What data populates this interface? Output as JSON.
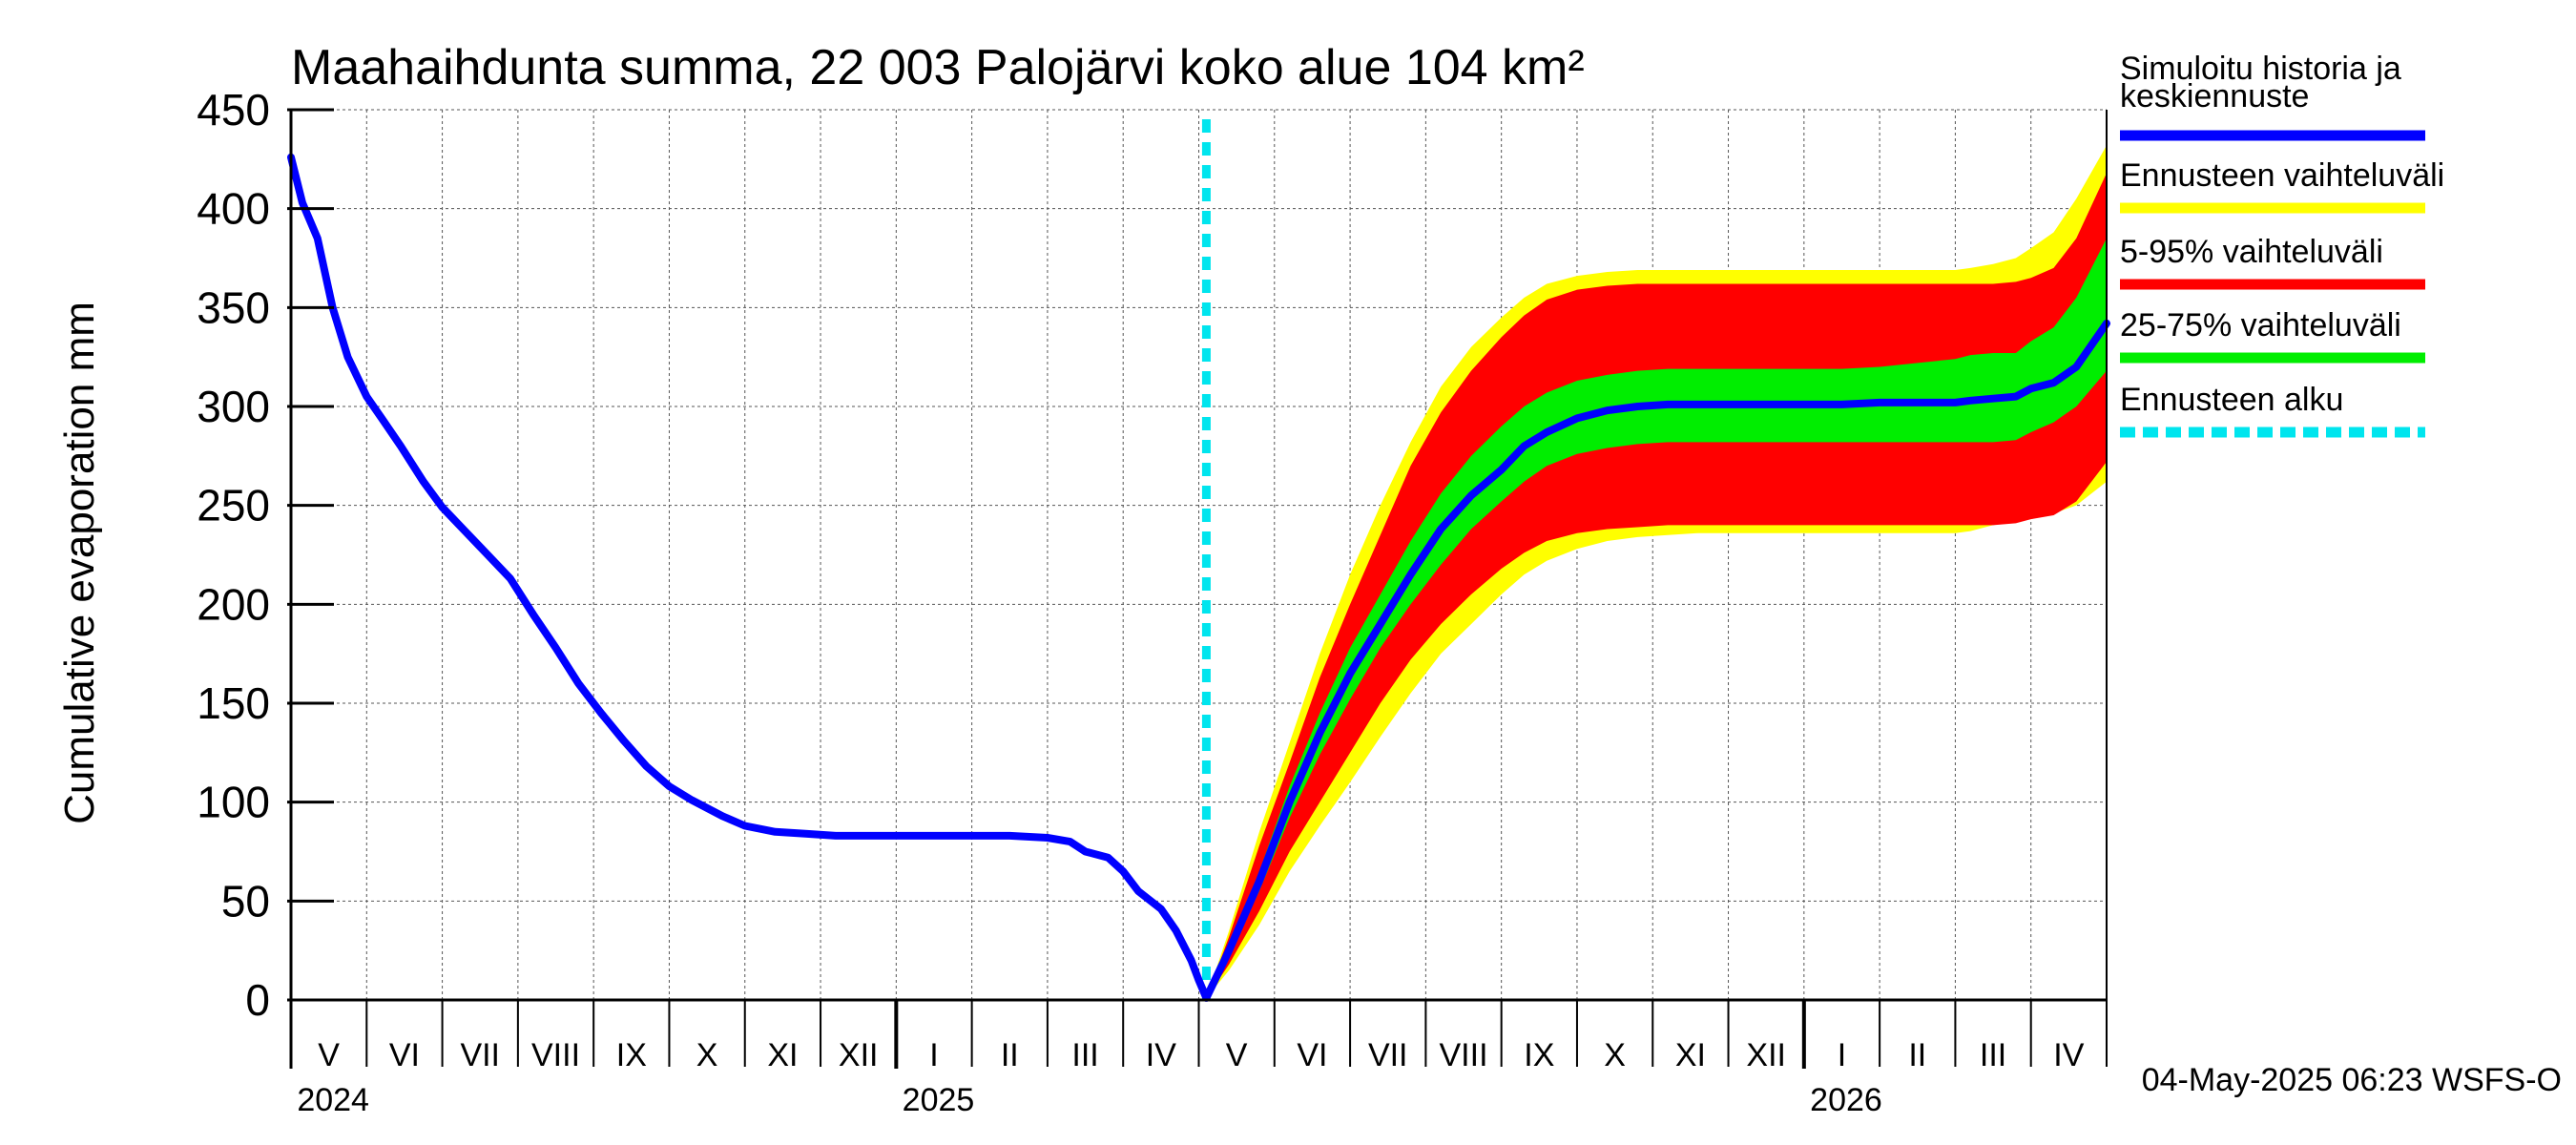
{
  "chart_data": {
    "type": "area",
    "title": "Maahaihdunta summa, 22 003 Palojärvi koko alue 104 km²",
    "ylabel": "Cumulative evaporation   mm",
    "xlabel": "",
    "ylim": [
      0,
      450
    ],
    "yticks": [
      0,
      50,
      100,
      150,
      200,
      250,
      300,
      350,
      400,
      450
    ],
    "x_unit": "months since 2024-04-01",
    "xlim": [
      0,
      24
    ],
    "forecast_start": 12.1,
    "months": [
      {
        "label": "V",
        "x": 0.5
      },
      {
        "label": "VI",
        "x": 1.5
      },
      {
        "label": "VII",
        "x": 2.5
      },
      {
        "label": "VIII",
        "x": 3.5
      },
      {
        "label": "IX",
        "x": 4.5
      },
      {
        "label": "X",
        "x": 5.5
      },
      {
        "label": "XI",
        "x": 6.5
      },
      {
        "label": "XII",
        "x": 7.5
      },
      {
        "label": "I",
        "x": 8.5
      },
      {
        "label": "II",
        "x": 9.5
      },
      {
        "label": "III",
        "x": 10.5
      },
      {
        "label": "IV",
        "x": 11.5
      },
      {
        "label": "V",
        "x": 12.5
      },
      {
        "label": "VI",
        "x": 13.5
      },
      {
        "label": "VII",
        "x": 14.5
      },
      {
        "label": "VIII",
        "x": 15.5
      },
      {
        "label": "IX",
        "x": 16.5
      },
      {
        "label": "X",
        "x": 17.5
      },
      {
        "label": "XI",
        "x": 18.5
      },
      {
        "label": "XII",
        "x": 19.5
      },
      {
        "label": "I",
        "x": 20.5
      },
      {
        "label": "II",
        "x": 21.5
      },
      {
        "label": "III",
        "x": 22.5
      },
      {
        "label": "IV",
        "x": 23.5
      }
    ],
    "years": [
      {
        "label": "2024",
        "x": 0.08
      },
      {
        "label": "2025",
        "x": 8.08
      },
      {
        "label": "2026",
        "x": 20.08
      }
    ],
    "year_boundaries": [
      8,
      20
    ],
    "series": [
      {
        "name": "Simuloitu historia ja keskiennuste",
        "color": "#0000ff",
        "x": [
          0,
          0.15,
          0.35,
          0.55,
          0.75,
          1.0,
          1.2,
          1.45,
          1.75,
          2.0,
          2.3,
          2.6,
          2.9,
          3.2,
          3.5,
          3.8,
          4.1,
          4.4,
          4.7,
          5.0,
          5.3,
          5.7,
          6.0,
          6.4,
          6.8,
          7.2,
          7.6,
          8.0,
          8.5,
          9.0,
          9.5,
          10.0,
          10.3,
          10.5,
          10.8,
          11.0,
          11.2,
          11.5,
          11.7,
          11.9,
          12.0,
          12.1,
          12.4,
          12.8,
          13.2,
          13.6,
          14.0,
          14.4,
          14.8,
          15.2,
          15.6,
          16.0,
          16.3,
          16.6,
          17.0,
          17.4,
          17.8,
          18.2,
          18.6,
          19.0,
          19.5,
          20.0,
          20.5,
          21.0,
          21.5,
          22.0,
          22.2,
          22.5,
          22.8,
          23.0,
          23.3,
          23.6,
          24.0
        ],
        "values": [
          426,
          403,
          385,
          350,
          325,
          305,
          294,
          280,
          262,
          249,
          237,
          225,
          213,
          195,
          178,
          160,
          145,
          131,
          118,
          108,
          101,
          93,
          88,
          85,
          84,
          83,
          83,
          83,
          83,
          83,
          83,
          82,
          80,
          75,
          72,
          65,
          55,
          46,
          35,
          20,
          10,
          1,
          25,
          60,
          100,
          135,
          165,
          190,
          215,
          238,
          255,
          268,
          280,
          287,
          294,
          298,
          300,
          301,
          301,
          301,
          301,
          301,
          301,
          302,
          302,
          302,
          303,
          304,
          305,
          309,
          312,
          320,
          342
        ]
      }
    ],
    "bands": [
      {
        "name": "Ennusteen vaihteluväli",
        "color": "#ffff00",
        "x": [
          12.1,
          12.4,
          12.8,
          13.2,
          13.6,
          14.0,
          14.4,
          14.8,
          15.2,
          15.6,
          16.0,
          16.3,
          16.6,
          17.0,
          17.4,
          17.8,
          18.2,
          18.6,
          19.0,
          19.5,
          20.0,
          20.5,
          21.0,
          21.5,
          22.0,
          22.2,
          22.5,
          22.8,
          23.0,
          23.3,
          23.6,
          24.0
        ],
        "upper": [
          1,
          35,
          85,
          130,
          175,
          215,
          250,
          282,
          310,
          330,
          345,
          355,
          362,
          366,
          368,
          369,
          369,
          369,
          369,
          369,
          369,
          369,
          369,
          369,
          369,
          370,
          372,
          375,
          380,
          388,
          405,
          432
        ],
        "lower": [
          1,
          15,
          38,
          65,
          88,
          110,
          133,
          155,
          175,
          190,
          205,
          215,
          222,
          228,
          232,
          234,
          235,
          236,
          236,
          236,
          236,
          236,
          236,
          236,
          236,
          237,
          240,
          242,
          243,
          246,
          250,
          262
        ]
      },
      {
        "name": "5-95% vaihteluväli",
        "color": "#ff0000",
        "x": [
          12.1,
          12.4,
          12.8,
          13.2,
          13.6,
          14.0,
          14.4,
          14.8,
          15.2,
          15.6,
          16.0,
          16.3,
          16.6,
          17.0,
          17.4,
          17.8,
          18.2,
          18.6,
          19.0,
          19.5,
          20.0,
          20.5,
          21.0,
          21.5,
          22.0,
          22.2,
          22.5,
          22.8,
          23.0,
          23.3,
          23.6,
          24.0
        ],
        "upper": [
          1,
          32,
          78,
          120,
          163,
          200,
          235,
          270,
          297,
          318,
          335,
          346,
          354,
          359,
          361,
          362,
          362,
          362,
          362,
          362,
          362,
          362,
          362,
          362,
          362,
          362,
          362,
          363,
          365,
          370,
          385,
          418
        ],
        "lower": [
          1,
          18,
          45,
          75,
          100,
          125,
          150,
          172,
          190,
          205,
          218,
          226,
          232,
          236,
          238,
          239,
          240,
          240,
          240,
          240,
          240,
          240,
          240,
          240,
          240,
          240,
          240,
          241,
          243,
          245,
          252,
          272
        ]
      },
      {
        "name": "25-75% vaihteluväli",
        "color": "#00ee00",
        "x": [
          12.1,
          12.4,
          12.8,
          13.2,
          13.6,
          14.0,
          14.4,
          14.8,
          15.2,
          15.6,
          16.0,
          16.3,
          16.6,
          17.0,
          17.4,
          17.8,
          18.2,
          18.6,
          19.0,
          19.5,
          20.0,
          20.5,
          21.0,
          21.5,
          22.0,
          22.2,
          22.5,
          22.8,
          23.0,
          23.3,
          23.6,
          24.0
        ],
        "upper": [
          1,
          27,
          65,
          108,
          145,
          178,
          205,
          232,
          256,
          275,
          290,
          300,
          307,
          313,
          316,
          318,
          319,
          319,
          319,
          319,
          319,
          319,
          320,
          322,
          324,
          326,
          327,
          327,
          333,
          340,
          355,
          385
        ],
        "lower": [
          1,
          23,
          55,
          92,
          124,
          152,
          178,
          200,
          220,
          238,
          252,
          262,
          270,
          276,
          279,
          281,
          282,
          282,
          282,
          282,
          282,
          282,
          282,
          282,
          282,
          282,
          282,
          283,
          287,
          292,
          300,
          318
        ]
      }
    ],
    "legend": [
      {
        "label": "Simuloitu historia ja",
        "label2": "keskiennuste",
        "color": "#0000ff",
        "style": "solid"
      },
      {
        "label": "Ennusteen vaihteluväli",
        "color": "#ffff00",
        "style": "solid"
      },
      {
        "label": "5-95% vaihteluväli",
        "color": "#ff0000",
        "style": "solid"
      },
      {
        "label": "25-75% vaihteluväli",
        "color": "#00ee00",
        "style": "solid"
      },
      {
        "label": "Ennusteen alku",
        "color": "#00e5ee",
        "style": "dashed"
      }
    ],
    "legend_position": "right",
    "footer": "04-May-2025 06:23 WSFS-O"
  }
}
